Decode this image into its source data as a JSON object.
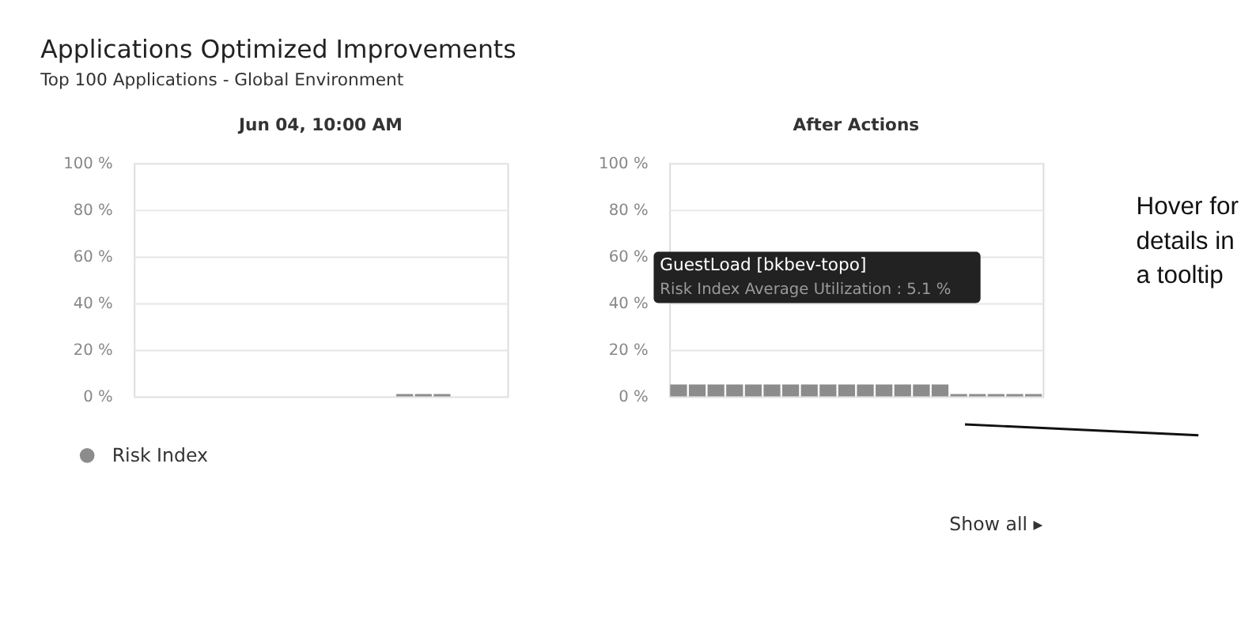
{
  "chart_data": [
    {
      "type": "bar",
      "title": "Jun 04, 10:00 AM",
      "categories": [
        null,
        null,
        null,
        null,
        null,
        null,
        null,
        null,
        null,
        null,
        null,
        null,
        null,
        null,
        null,
        null,
        null,
        null,
        null,
        null
      ],
      "series": [
        {
          "name": "Risk Index",
          "color": "#8c8c8c",
          "values": [
            null,
            null,
            null,
            null,
            null,
            null,
            null,
            null,
            null,
            null,
            null,
            null,
            null,
            null,
            1,
            1,
            1,
            null,
            null,
            null
          ]
        }
      ],
      "ylim": [
        0,
        100
      ],
      "yticks": [
        {
          "value": 0,
          "label": "0 %"
        },
        {
          "value": 20,
          "label": "20 %"
        },
        {
          "value": 40,
          "label": "40 %"
        },
        {
          "value": 60,
          "label": "60 %"
        },
        {
          "value": 80,
          "label": "80 %"
        },
        {
          "value": 100,
          "label": "100 %"
        }
      ],
      "grid": "y",
      "legend": "bottom left",
      "tick_labels": "y",
      "annotations": [
        "Applications Optimized Improvements",
        "Top 100 Applications - Global Environment"
      ]
    },
    {
      "type": "bar",
      "title": "After Actions",
      "categories": [
        null,
        null,
        null,
        null,
        null,
        null,
        null,
        null,
        null,
        null,
        null,
        null,
        null,
        null,
        null,
        null,
        null,
        null,
        null,
        null
      ],
      "series": [
        {
          "color": "#8c8c8c",
          "values": [
            5.1,
            5.1,
            5.1,
            5.1,
            5.1,
            5.1,
            5.1,
            5.1,
            5.1,
            5.1,
            5.1,
            5.1,
            5.1,
            5.1,
            5.1,
            1,
            1,
            1,
            1,
            1
          ]
        }
      ],
      "ylim": [
        0,
        100
      ],
      "yticks": [
        {
          "value": 0,
          "label": "0 %"
        },
        {
          "value": 20,
          "label": "20 %"
        },
        {
          "value": 40,
          "label": "40 %"
        },
        {
          "value": 60,
          "label": "60 %"
        },
        {
          "value": 80,
          "label": "80 %"
        },
        {
          "value": 100,
          "label": "100 %"
        }
      ],
      "grid": "y",
      "tick_labels": "y",
      "annotations": [
        "GuestLoad [bkbev-topo]",
        "Risk Index Average Utilization : 5.1 %",
        "Hover for details in a tooltip",
        "Show all ▸"
      ]
    }
  ]
}
